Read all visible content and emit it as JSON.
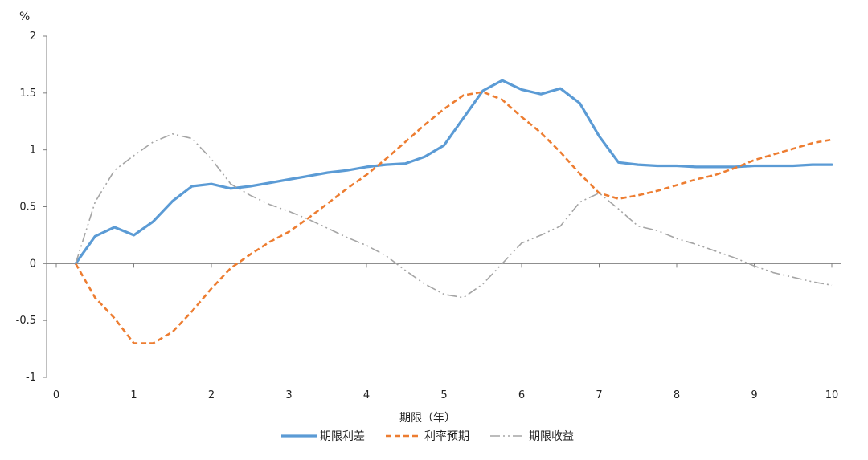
{
  "chart_data": {
    "type": "line",
    "title": "",
    "xlabel": "期限（年）",
    "ylabel": "%",
    "xlim": [
      0,
      10
    ],
    "ylim": [
      -1,
      2
    ],
    "xticks": [
      0,
      1,
      2,
      3,
      4,
      5,
      6,
      7,
      8,
      9,
      10
    ],
    "yticks": [
      -1,
      -0.5,
      0,
      0.5,
      1,
      1.5,
      2
    ],
    "xtick_labels": [
      "0",
      "1",
      "2",
      "3",
      "4",
      "5",
      "6",
      "7",
      "8",
      "9",
      "10"
    ],
    "ytick_labels": [
      "-1",
      "-0.5",
      "0",
      "0.5",
      "1",
      "1.5",
      "2"
    ],
    "grid": false,
    "legend_position": "bottom",
    "x": [
      0.25,
      0.5,
      0.75,
      1.0,
      1.25,
      1.5,
      1.75,
      2.0,
      2.25,
      2.5,
      2.75,
      3.0,
      3.25,
      3.5,
      3.75,
      4.0,
      4.25,
      4.5,
      4.75,
      5.0,
      5.25,
      5.5,
      5.75,
      6.0,
      6.25,
      6.5,
      6.75,
      7.0,
      7.25,
      7.5,
      7.75,
      8.0,
      8.25,
      8.5,
      8.75,
      9.0,
      9.25,
      9.5,
      9.75,
      10.0
    ],
    "series": [
      {
        "name": "期限利差",
        "color": "#5B9BD5",
        "style": "solid",
        "values": [
          0.0,
          0.24,
          0.32,
          0.25,
          0.37,
          0.55,
          0.68,
          0.7,
          0.66,
          0.68,
          0.71,
          0.74,
          0.77,
          0.8,
          0.82,
          0.85,
          0.87,
          0.88,
          0.94,
          1.04,
          1.28,
          1.52,
          1.61,
          1.53,
          1.49,
          1.54,
          1.41,
          1.12,
          0.89,
          0.87,
          0.86,
          0.86,
          0.85,
          0.85,
          0.85,
          0.86,
          0.86,
          0.86,
          0.87,
          0.87
        ]
      },
      {
        "name": "利率预期",
        "color": "#ED7D31",
        "style": "dashed",
        "values": [
          0.0,
          -0.3,
          -0.48,
          -0.7,
          -0.7,
          -0.6,
          -0.42,
          -0.22,
          -0.04,
          0.08,
          0.19,
          0.28,
          0.4,
          0.53,
          0.66,
          0.78,
          0.92,
          1.07,
          1.22,
          1.36,
          1.48,
          1.51,
          1.44,
          1.29,
          1.15,
          0.98,
          0.79,
          0.62,
          0.57,
          0.6,
          0.64,
          0.69,
          0.74,
          0.78,
          0.84,
          0.91,
          0.96,
          1.01,
          1.06,
          1.09
        ]
      },
      {
        "name": "期限收益",
        "color": "#A5A5A5",
        "style": "dashdotdot",
        "values": [
          0.0,
          0.54,
          0.82,
          0.95,
          1.07,
          1.14,
          1.1,
          0.92,
          0.7,
          0.6,
          0.52,
          0.46,
          0.39,
          0.31,
          0.23,
          0.16,
          0.07,
          -0.06,
          -0.18,
          -0.27,
          -0.3,
          -0.18,
          0.0,
          0.18,
          0.25,
          0.33,
          0.54,
          0.62,
          0.48,
          0.33,
          0.29,
          0.22,
          0.17,
          0.11,
          0.05,
          -0.02,
          -0.08,
          -0.12,
          -0.16,
          -0.19
        ]
      }
    ]
  }
}
